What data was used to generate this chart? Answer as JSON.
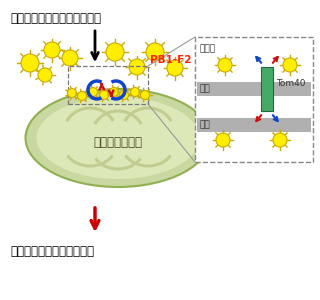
{
  "bg_color": "#ffffff",
  "top_label": "インフルエンザウイルス感染",
  "bottom_label": "ミトコンドリアの機能低下",
  "mito_label": "ミトコンドリア",
  "pb1_label": "PB1-F2",
  "inset_labels": [
    "細胞質",
    "外膜",
    "内膜",
    "Tom40"
  ],
  "mito_outer_color": "#c8d8a0",
  "mito_inner_color": "#dde8b8",
  "mito_cristae_color": "#c0cc90",
  "virus_color": "#ffee00",
  "virus_outline": "#ccaa00",
  "pb1_color": "#ff2200",
  "tom40_color": "#44aa66",
  "outer_membrane_color": "#b0b0b0",
  "inset_bg": "#ffffff",
  "inset_border": "#888888"
}
